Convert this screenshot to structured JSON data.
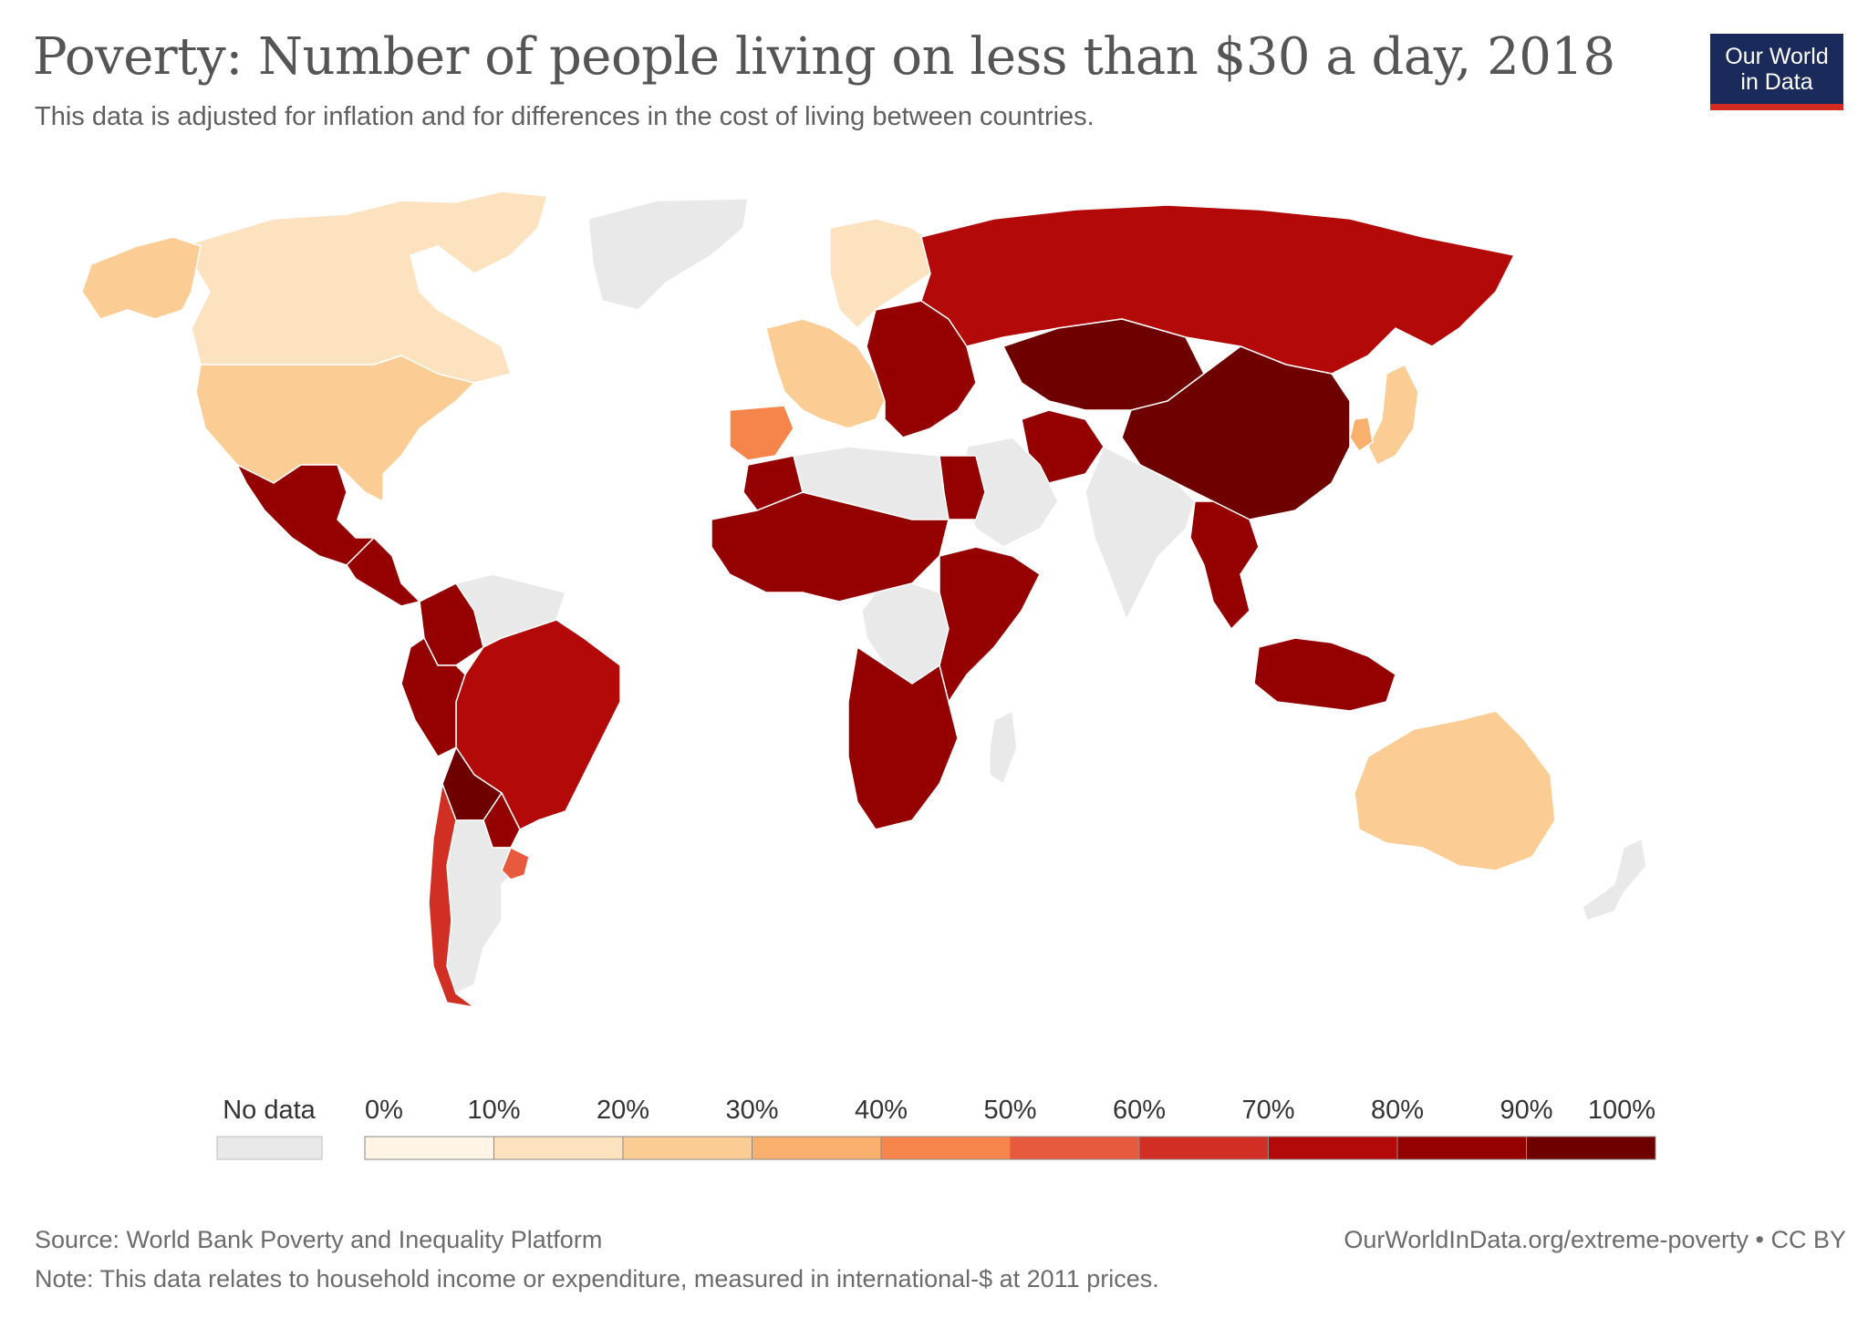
{
  "header": {
    "title": "Poverty: Number of people living on less than $30 a day, 2018",
    "subtitle": "This data is adjusted for inflation and for differences in the cost of living between countries."
  },
  "logo": {
    "line1": "Our World",
    "line2": "in Data"
  },
  "colors": {
    "no_data": "#e9e9e9",
    "land_outline": "#ffffff",
    "bins": [
      "#fff4e6",
      "#fde2c0",
      "#fbcd94",
      "#f9b06c",
      "#f5854a",
      "#e85a3d",
      "#d12f24",
      "#b30909",
      "#940100",
      "#6e0000"
    ]
  },
  "legend": {
    "no_data_label": "No data",
    "ticks": [
      "0%",
      "10%",
      "20%",
      "30%",
      "40%",
      "50%",
      "60%",
      "70%",
      "80%",
      "90%",
      "100%"
    ]
  },
  "regions": [
    {
      "name": "Canada",
      "bin": 1
    },
    {
      "name": "United States",
      "bin": 2
    },
    {
      "name": "Alaska",
      "bin": 2
    },
    {
      "name": "Greenland",
      "bin": -1
    },
    {
      "name": "Mexico",
      "bin": 8
    },
    {
      "name": "Central America",
      "bin": 8
    },
    {
      "name": "Colombia",
      "bin": 8
    },
    {
      "name": "Venezuela",
      "bin": -1
    },
    {
      "name": "Brazil",
      "bin": 7
    },
    {
      "name": "Peru",
      "bin": 8
    },
    {
      "name": "Bolivia",
      "bin": 9
    },
    {
      "name": "Paraguay",
      "bin": 8
    },
    {
      "name": "Argentina",
      "bin": -1
    },
    {
      "name": "Chile",
      "bin": 6
    },
    {
      "name": "Uruguay",
      "bin": 5
    },
    {
      "name": "Western Europe",
      "bin": 2
    },
    {
      "name": "Iberia",
      "bin": 4
    },
    {
      "name": "Scandinavia",
      "bin": 1
    },
    {
      "name": "Eastern Europe",
      "bin": 8
    },
    {
      "name": "Russia",
      "bin": 7
    },
    {
      "name": "Central Asia",
      "bin": 9
    },
    {
      "name": "China",
      "bin": 9
    },
    {
      "name": "Iran",
      "bin": 8
    },
    {
      "name": "Arabian Peninsula",
      "bin": -1
    },
    {
      "name": "India",
      "bin": -1
    },
    {
      "name": "Southeast Asia",
      "bin": 8
    },
    {
      "name": "Indonesia",
      "bin": 8
    },
    {
      "name": "Japan",
      "bin": 2
    },
    {
      "name": "South Korea",
      "bin": 3
    },
    {
      "name": "North Africa",
      "bin": -1
    },
    {
      "name": "Morocco",
      "bin": 8
    },
    {
      "name": "Egypt",
      "bin": 8
    },
    {
      "name": "West Africa",
      "bin": 8
    },
    {
      "name": "Central Africa",
      "bin": -1
    },
    {
      "name": "East Africa",
      "bin": 8
    },
    {
      "name": "Southern Africa",
      "bin": 8
    },
    {
      "name": "Madagascar",
      "bin": -1
    },
    {
      "name": "Australia",
      "bin": 2
    },
    {
      "name": "New Zealand",
      "bin": -1
    }
  ],
  "footer": {
    "source": "Source: World Bank Poverty and Inequality Platform",
    "note": "Note: This data relates to household income or expenditure, measured in international-$ at 2011 prices.",
    "url": "OurWorldInData.org/extreme-poverty • CC BY"
  }
}
